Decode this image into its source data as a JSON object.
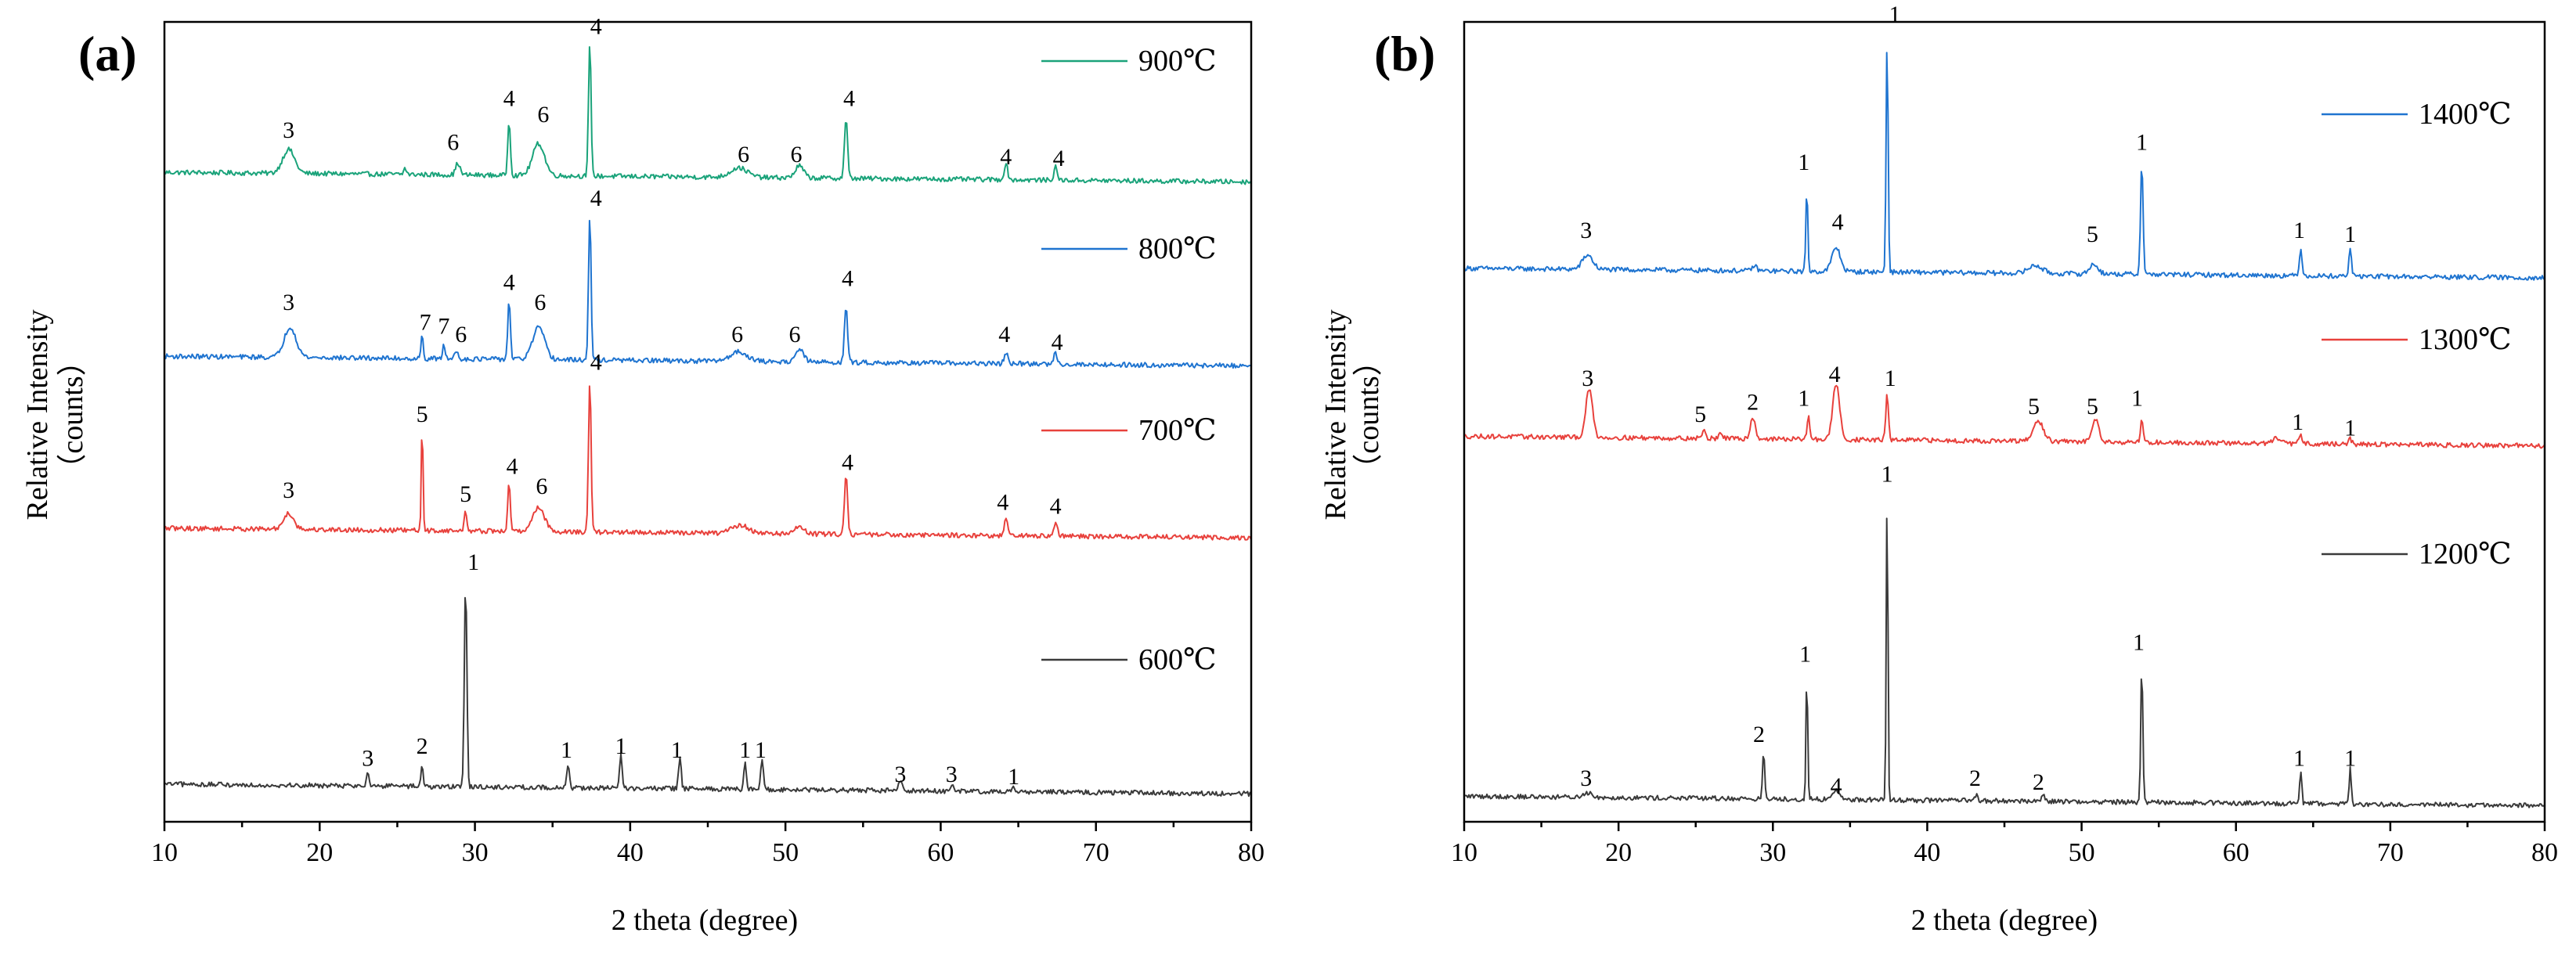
{
  "chart_data": [
    {
      "type": "line",
      "panel_label": "(a)",
      "xlabel": "2 theta (degree)",
      "ylabel": "Relative Intensity",
      "ylabel_units": "（counts）",
      "xlim": [
        10,
        80
      ],
      "xticks": [
        "10",
        "20",
        "30",
        "40",
        "50",
        "60",
        "70",
        "80"
      ],
      "series": [
        {
          "name": "900℃",
          "color": "#1aa37a",
          "baseline": 0.8,
          "peaks": [
            [
              18.0,
              0.03,
              0.7
            ],
            [
              25.5,
              0.008,
              0.15
            ],
            [
              28.9,
              0.015,
              0.25
            ],
            [
              32.2,
              0.07,
              0.15
            ],
            [
              34.1,
              0.04,
              0.7
            ],
            [
              37.4,
              0.165,
              0.15
            ],
            [
              47.0,
              0.012,
              1.0
            ],
            [
              50.9,
              0.015,
              0.5
            ],
            [
              53.9,
              0.075,
              0.18
            ],
            [
              64.2,
              0.02,
              0.2
            ],
            [
              67.4,
              0.016,
              0.2
            ]
          ],
          "labels": [
            {
              "x": 18.0,
              "text": "3",
              "y": 0.855
            },
            {
              "x": 28.6,
              "text": "6",
              "y": 0.84
            },
            {
              "x": 32.2,
              "text": "4",
              "y": 0.895
            },
            {
              "x": 34.4,
              "text": "6",
              "y": 0.875
            },
            {
              "x": 37.8,
              "text": "4",
              "y": 0.985
            },
            {
              "x": 47.3,
              "text": "6",
              "y": 0.825
            },
            {
              "x": 50.7,
              "text": "6",
              "y": 0.825
            },
            {
              "x": 54.1,
              "text": "4",
              "y": 0.895
            },
            {
              "x": 64.2,
              "text": "4",
              "y": 0.822
            },
            {
              "x": 67.6,
              "text": "4",
              "y": 0.82
            }
          ]
        },
        {
          "name": "800℃",
          "color": "#1f74d0",
          "baseline": 0.57,
          "peaks": [
            [
              18.1,
              0.038,
              0.7
            ],
            [
              26.6,
              0.03,
              0.12
            ],
            [
              28.0,
              0.02,
              0.12
            ],
            [
              28.8,
              0.01,
              0.2
            ],
            [
              32.2,
              0.075,
              0.15
            ],
            [
              34.1,
              0.04,
              0.7
            ],
            [
              37.4,
              0.18,
              0.15
            ],
            [
              47.0,
              0.012,
              1.0
            ],
            [
              50.9,
              0.015,
              0.5
            ],
            [
              53.9,
              0.07,
              0.18
            ],
            [
              64.2,
              0.014,
              0.2
            ],
            [
              67.4,
              0.014,
              0.2
            ]
          ],
          "labels": [
            {
              "x": 18.0,
              "text": "3",
              "y": 0.64
            },
            {
              "x": 26.8,
              "text": "7",
              "y": 0.615
            },
            {
              "x": 28.0,
              "text": "7",
              "y": 0.61
            },
            {
              "x": 29.1,
              "text": "6",
              "y": 0.6
            },
            {
              "x": 32.2,
              "text": "4",
              "y": 0.665
            },
            {
              "x": 34.2,
              "text": "6",
              "y": 0.64
            },
            {
              "x": 37.8,
              "text": "4",
              "y": 0.77
            },
            {
              "x": 46.9,
              "text": "6",
              "y": 0.6
            },
            {
              "x": 50.6,
              "text": "6",
              "y": 0.6
            },
            {
              "x": 54.0,
              "text": "4",
              "y": 0.67
            },
            {
              "x": 64.1,
              "text": "4",
              "y": 0.6
            },
            {
              "x": 67.5,
              "text": "4",
              "y": 0.59
            }
          ]
        },
        {
          "name": "700℃",
          "color": "#e8413c",
          "baseline": 0.355,
          "peaks": [
            [
              18.0,
              0.02,
              0.6
            ],
            [
              26.6,
              0.135,
              0.1
            ],
            [
              29.4,
              0.025,
              0.15
            ],
            [
              32.2,
              0.06,
              0.15
            ],
            [
              34.1,
              0.03,
              0.7
            ],
            [
              37.4,
              0.19,
              0.15
            ],
            [
              47.1,
              0.01,
              1.0
            ],
            [
              50.9,
              0.01,
              0.5
            ],
            [
              53.9,
              0.075,
              0.18
            ],
            [
              64.2,
              0.02,
              0.2
            ],
            [
              67.4,
              0.017,
              0.2
            ]
          ],
          "labels": [
            {
              "x": 18.0,
              "text": "3",
              "y": 0.405
            },
            {
              "x": 26.6,
              "text": "5",
              "y": 0.5
            },
            {
              "x": 29.4,
              "text": "5",
              "y": 0.4
            },
            {
              "x": 32.4,
              "text": "4",
              "y": 0.435
            },
            {
              "x": 34.3,
              "text": "6",
              "y": 0.41
            },
            {
              "x": 37.8,
              "text": "4",
              "y": 0.565
            },
            {
              "x": 54.0,
              "text": "4",
              "y": 0.44
            },
            {
              "x": 64.0,
              "text": "4",
              "y": 0.39
            },
            {
              "x": 67.4,
              "text": "4",
              "y": 0.385
            }
          ]
        },
        {
          "name": "600℃",
          "color": "#3a3a3a",
          "baseline": 0.035,
          "peaks": [
            [
              23.1,
              0.02,
              0.15
            ],
            [
              26.6,
              0.028,
              0.12
            ],
            [
              29.4,
              0.255,
              0.15
            ],
            [
              36.0,
              0.03,
              0.15
            ],
            [
              39.4,
              0.04,
              0.15
            ],
            [
              43.2,
              0.04,
              0.15
            ],
            [
              47.4,
              0.035,
              0.15
            ],
            [
              48.5,
              0.04,
              0.15
            ],
            [
              57.4,
              0.012,
              0.2
            ],
            [
              60.7,
              0.008,
              0.2
            ],
            [
              64.7,
              0.006,
              0.2
            ]
          ],
          "labels": [
            {
              "x": 23.1,
              "text": "3",
              "y": 0.07
            },
            {
              "x": 26.6,
              "text": "2",
              "y": 0.085
            },
            {
              "x": 29.9,
              "text": "1",
              "y": 0.315
            },
            {
              "x": 35.9,
              "text": "1",
              "y": 0.08
            },
            {
              "x": 39.4,
              "text": "1",
              "y": 0.085
            },
            {
              "x": 43.0,
              "text": "1",
              "y": 0.08
            },
            {
              "x": 47.4,
              "text": "1",
              "y": 0.08
            },
            {
              "x": 48.4,
              "text": "1",
              "y": 0.08
            },
            {
              "x": 57.4,
              "text": "3",
              "y": 0.05
            },
            {
              "x": 60.7,
              "text": "3",
              "y": 0.05
            },
            {
              "x": 64.7,
              "text": "1",
              "y": 0.047
            }
          ]
        }
      ]
    },
    {
      "type": "line",
      "panel_label": "(b)",
      "xlabel": "2 theta (degree)",
      "ylabel": "Relative Intensity",
      "ylabel_units": "（counts）",
      "xlim": [
        10,
        80
      ],
      "xticks": [
        "10",
        "20",
        "30",
        "40",
        "50",
        "60",
        "70",
        "80"
      ],
      "series": [
        {
          "name": "1400℃",
          "color": "#1f74d0",
          "baseline": 0.68,
          "peaks": [
            [
              18.0,
              0.018,
              0.6
            ],
            [
              28.8,
              0.006,
              0.3
            ],
            [
              32.2,
              0.1,
              0.12
            ],
            [
              34.1,
              0.03,
              0.5
            ],
            [
              37.4,
              0.29,
              0.12
            ],
            [
              47.0,
              0.01,
              0.8
            ],
            [
              50.8,
              0.012,
              0.5
            ],
            [
              53.9,
              0.14,
              0.15
            ],
            [
              64.2,
              0.035,
              0.15
            ],
            [
              67.4,
              0.036,
              0.15
            ]
          ],
          "labels": [
            {
              "x": 17.9,
              "text": "3",
              "y": 0.73
            },
            {
              "x": 32.0,
              "text": "1",
              "y": 0.815
            },
            {
              "x": 34.2,
              "text": "4",
              "y": 0.74
            },
            {
              "x": 37.9,
              "text": "1",
              "y": 1.0
            },
            {
              "x": 50.7,
              "text": "5",
              "y": 0.725
            },
            {
              "x": 53.9,
              "text": "1",
              "y": 0.84
            },
            {
              "x": 64.1,
              "text": "1",
              "y": 0.73
            },
            {
              "x": 67.4,
              "text": "1",
              "y": 0.725
            }
          ]
        },
        {
          "name": "1300℃",
          "color": "#e8413c",
          "baseline": 0.47,
          "peaks": [
            [
              18.1,
              0.06,
              0.4
            ],
            [
              25.5,
              0.01,
              0.2
            ],
            [
              26.6,
              0.008,
              0.2
            ],
            [
              28.7,
              0.026,
              0.3
            ],
            [
              32.3,
              0.03,
              0.15
            ],
            [
              34.1,
              0.07,
              0.4
            ],
            [
              37.4,
              0.06,
              0.15
            ],
            [
              47.2,
              0.025,
              0.6
            ],
            [
              50.9,
              0.03,
              0.4
            ],
            [
              53.9,
              0.03,
              0.15
            ],
            [
              62.6,
              0.006,
              0.5
            ],
            [
              64.2,
              0.01,
              0.2
            ],
            [
              67.4,
              0.006,
              0.2
            ]
          ],
          "labels": [
            {
              "x": 18.0,
              "text": "3",
              "y": 0.545
            },
            {
              "x": 25.3,
              "text": "5",
              "y": 0.5
            },
            {
              "x": 28.7,
              "text": "2",
              "y": 0.515
            },
            {
              "x": 32.0,
              "text": "1",
              "y": 0.52
            },
            {
              "x": 34.0,
              "text": "4",
              "y": 0.55
            },
            {
              "x": 37.6,
              "text": "1",
              "y": 0.545
            },
            {
              "x": 46.9,
              "text": "5",
              "y": 0.51
            },
            {
              "x": 50.7,
              "text": "5",
              "y": 0.51
            },
            {
              "x": 53.6,
              "text": "1",
              "y": 0.52
            },
            {
              "x": 64.0,
              "text": "1",
              "y": 0.49
            },
            {
              "x": 67.4,
              "text": "1",
              "y": 0.483
            }
          ]
        },
        {
          "name": "1200℃",
          "color": "#3a3a3a",
          "baseline": 0.02,
          "peaks": [
            [
              18.0,
              0.006,
              0.5
            ],
            [
              29.4,
              0.06,
              0.12
            ],
            [
              32.2,
              0.16,
              0.1
            ],
            [
              34.1,
              0.012,
              0.4
            ],
            [
              37.4,
              0.385,
              0.1
            ],
            [
              43.2,
              0.01,
              0.15
            ],
            [
              47.5,
              0.01,
              0.2
            ],
            [
              53.9,
              0.175,
              0.12
            ],
            [
              64.2,
              0.04,
              0.12
            ],
            [
              67.4,
              0.045,
              0.12
            ]
          ],
          "labels": [
            {
              "x": 17.9,
              "text": "3",
              "y": 0.045
            },
            {
              "x": 29.1,
              "text": "2",
              "y": 0.1
            },
            {
              "x": 32.1,
              "text": "1",
              "y": 0.2
            },
            {
              "x": 34.1,
              "text": "4",
              "y": 0.035
            },
            {
              "x": 37.4,
              "text": "1",
              "y": 0.425
            },
            {
              "x": 43.1,
              "text": "2",
              "y": 0.045
            },
            {
              "x": 47.2,
              "text": "2",
              "y": 0.04
            },
            {
              "x": 53.7,
              "text": "1",
              "y": 0.215
            },
            {
              "x": 64.1,
              "text": "1",
              "y": 0.07
            },
            {
              "x": 67.4,
              "text": "1",
              "y": 0.07
            }
          ]
        }
      ]
    }
  ]
}
